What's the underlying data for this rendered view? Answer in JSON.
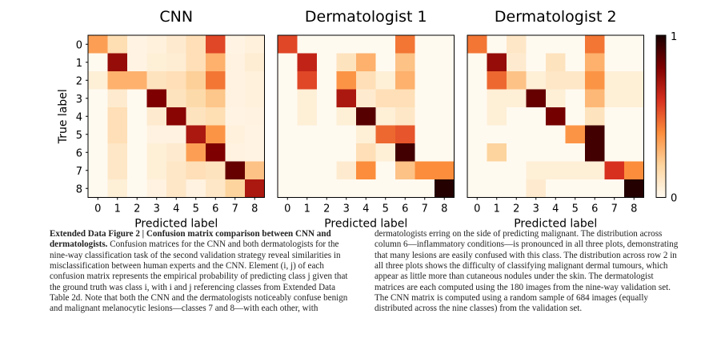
{
  "chart_data": {
    "type": "heatmap",
    "xlabel": "Predicted label",
    "ylabel": "True label",
    "x_ticks": [
      "0",
      "1",
      "2",
      "3",
      "4",
      "5",
      "6",
      "7",
      "8"
    ],
    "y_ticks": [
      "0",
      "1",
      "2",
      "3",
      "4",
      "5",
      "6",
      "7",
      "8"
    ],
    "colorbar": {
      "min": 0,
      "max": 1,
      "min_label": "0",
      "max_label": "1",
      "colors": [
        "#fffaf0",
        "#fdd49e",
        "#fc8d3c",
        "#d7301f",
        "#7f0000",
        "#1a0000"
      ]
    },
    "panels": [
      {
        "title": "CNN",
        "matrix": [
          [
            0.35,
            0.15,
            0.03,
            0.05,
            0.08,
            0.14,
            0.55,
            0.03,
            0.05
          ],
          [
            0.0,
            0.75,
            0.03,
            0.06,
            0.07,
            0.14,
            0.3,
            0.04,
            0.07
          ],
          [
            0.06,
            0.3,
            0.3,
            0.12,
            0.14,
            0.21,
            0.45,
            0.04,
            0.05
          ],
          [
            0.0,
            0.08,
            0.0,
            0.8,
            0.12,
            0.17,
            0.24,
            0.04,
            0.05
          ],
          [
            0.0,
            0.14,
            0.0,
            0.08,
            0.78,
            0.12,
            0.15,
            0.03,
            0.04
          ],
          [
            0.0,
            0.14,
            0.0,
            0.04,
            0.04,
            0.7,
            0.38,
            0.05,
            0.03
          ],
          [
            0.0,
            0.1,
            0.0,
            0.06,
            0.08,
            0.35,
            0.8,
            0.04,
            0.03
          ],
          [
            0.0,
            0.1,
            0.0,
            0.06,
            0.1,
            0.14,
            0.12,
            0.85,
            0.25
          ],
          [
            0.0,
            0.06,
            0.0,
            0.04,
            0.1,
            0.04,
            0.1,
            0.2,
            0.7
          ]
        ]
      },
      {
        "title": "Dermatologist 1",
        "matrix": [
          [
            0.55,
            0.0,
            0.0,
            0.0,
            0.0,
            0.0,
            0.45,
            0.0,
            0.0
          ],
          [
            0.0,
            0.65,
            0.0,
            0.12,
            0.3,
            0.0,
            0.25,
            0.0,
            0.0
          ],
          [
            0.0,
            0.55,
            0.0,
            0.38,
            0.14,
            0.06,
            0.3,
            0.0,
            0.0
          ],
          [
            0.0,
            0.06,
            0.0,
            0.7,
            0.08,
            0.14,
            0.14,
            0.0,
            0.0
          ],
          [
            0.0,
            0.06,
            0.0,
            0.06,
            0.88,
            0.06,
            0.1,
            0.0,
            0.0
          ],
          [
            0.0,
            0.0,
            0.0,
            0.0,
            0.06,
            0.48,
            0.52,
            0.0,
            0.0
          ],
          [
            0.0,
            0.0,
            0.0,
            0.0,
            0.14,
            0.06,
            0.92,
            0.0,
            0.0
          ],
          [
            0.0,
            0.0,
            0.0,
            0.08,
            0.4,
            0.0,
            0.25,
            0.4,
            0.4
          ],
          [
            0.0,
            0.0,
            0.0,
            0.0,
            0.0,
            0.0,
            0.0,
            0.0,
            0.98
          ]
        ]
      },
      {
        "title": "Dermatologist 2",
        "matrix": [
          [
            0.45,
            0.0,
            0.1,
            0.0,
            0.0,
            0.0,
            0.45,
            0.0,
            0.0
          ],
          [
            0.0,
            0.75,
            0.08,
            0.0,
            0.12,
            0.0,
            0.3,
            0.0,
            0.0
          ],
          [
            0.0,
            0.48,
            0.25,
            0.06,
            0.1,
            0.1,
            0.38,
            0.06,
            0.06
          ],
          [
            0.0,
            0.06,
            0.06,
            0.85,
            0.06,
            0.0,
            0.28,
            0.06,
            0.06
          ],
          [
            0.0,
            0.06,
            0.0,
            0.0,
            0.82,
            0.0,
            0.12,
            0.0,
            0.0
          ],
          [
            0.0,
            0.0,
            0.0,
            0.0,
            0.0,
            0.38,
            0.92,
            0.0,
            0.0
          ],
          [
            0.0,
            0.2,
            0.0,
            0.0,
            0.0,
            0.0,
            0.92,
            0.0,
            0.0
          ],
          [
            0.0,
            0.0,
            0.0,
            0.06,
            0.06,
            0.06,
            0.06,
            0.6,
            0.4
          ],
          [
            0.0,
            0.0,
            0.0,
            0.08,
            0.0,
            0.0,
            0.0,
            0.0,
            0.98
          ]
        ]
      }
    ]
  },
  "caption": {
    "lead": "Extended Data Figure 2 | Confusion matrix comparison between CNN and dermatologists.",
    "body": " Confusion matrices for the CNN and both dermatologists for the nine-way classification task of the second validation strategy reveal similarities in misclassification between human experts and the CNN. Element (i, j) of each confusion matrix represents the empirical probability of predicting class j given that the ground truth was class i, with i and j referencing classes from Extended Data Table 2d. Note that both the CNN and the dermatologists noticeably confuse benign and malignant melanocytic lesions—classes 7 and 8—with each other, with dermatologists erring on the side of predicting malignant. The distribution across column 6—inflammatory conditions—is pronounced in all three plots, demonstrating that many lesions are easily confused with this class. The distribution across row 2 in all three plots shows the difficulty of classifying malignant dermal tumours, which appear as little more than cutaneous nodules under the skin. The dermatologist matrices are each computed using the 180 images from the nine-way validation set. The CNN matrix is computed using a random sample of 684 images (equally distributed across the nine classes) from the validation set."
  }
}
